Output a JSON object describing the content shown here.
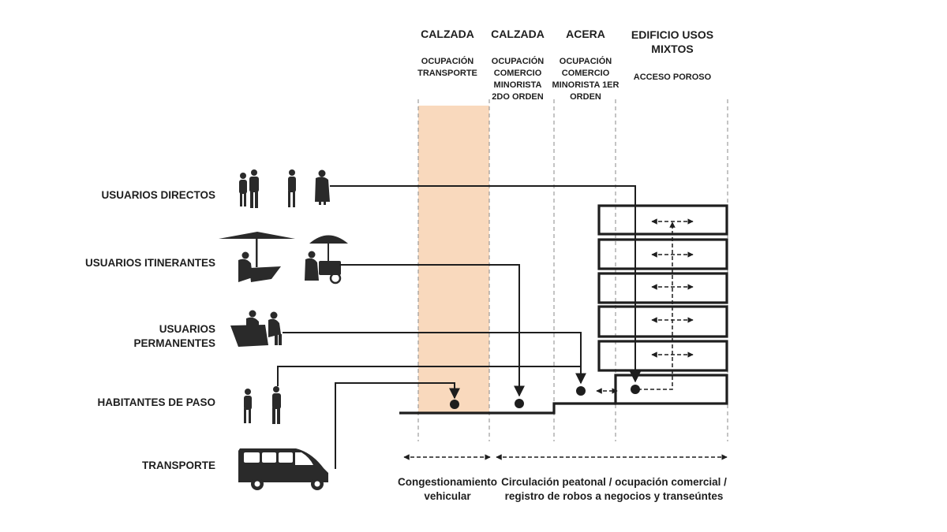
{
  "columns": [
    {
      "title": "CALZADA",
      "sub": [
        "OCUPACIÓN",
        "TRANSPORTE"
      ]
    },
    {
      "title": "CALZADA",
      "sub": [
        "OCUPACIÓN",
        "COMERCIO",
        "MINORISTA",
        "2DO ORDEN"
      ]
    },
    {
      "title": "ACERA",
      "sub": [
        "OCUPACIÓN",
        "COMERCIO",
        "MINORISTA 1ER",
        "ORDEN"
      ]
    },
    {
      "title": [
        "EDIFICIO USOS",
        "MIXTOS"
      ],
      "sub": [
        "ACCESO POROSO"
      ]
    }
  ],
  "rows": [
    {
      "label": [
        "USUARIOS DIRECTOS"
      ],
      "icon": "pedestrians-icon"
    },
    {
      "label": [
        "USUARIOS ITINERANTES"
      ],
      "icon": "street-vendor-umbrella-icon"
    },
    {
      "label": [
        "USUARIOS",
        "PERMANENTES"
      ],
      "icon": "seated-vendors-icon"
    },
    {
      "label": [
        "HABITANTES DE PASO"
      ],
      "icon": "passersby-icon"
    },
    {
      "label": [
        "TRANSPORTE"
      ],
      "icon": "minibus-icon"
    }
  ],
  "footer": {
    "left": [
      "Congestionamiento",
      "vehicular"
    ],
    "right": [
      "Circulación peatonal / ocupación comercial /",
      "registro de robos a negocios y transeúntes"
    ]
  },
  "colors": {
    "transport_band": "#f9d9bd",
    "ink": "#1e1e1e",
    "guide": "#8a8a8a"
  }
}
